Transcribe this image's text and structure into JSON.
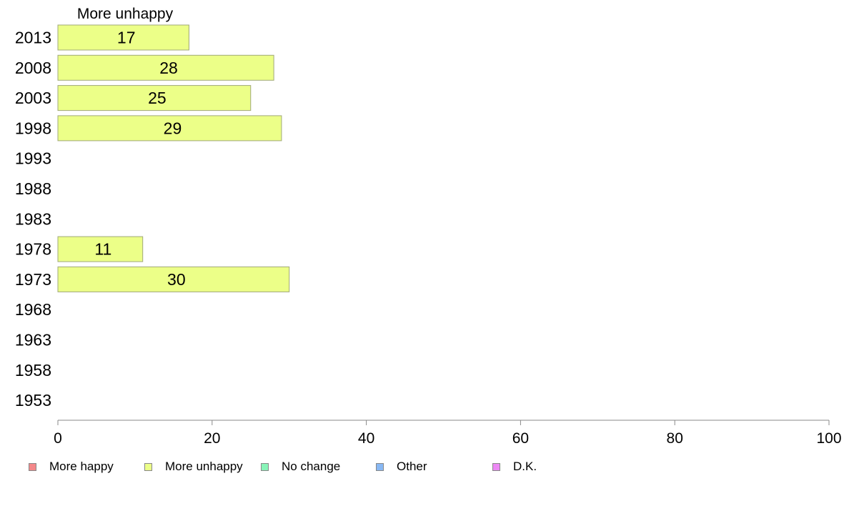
{
  "chart_data": {
    "type": "bar",
    "orientation": "horizontal",
    "title": "More unhappy",
    "categories": [
      "2013",
      "2008",
      "2003",
      "1998",
      "1993",
      "1988",
      "1983",
      "1978",
      "1973",
      "1968",
      "1963",
      "1958",
      "1953"
    ],
    "series": [
      {
        "name": "More unhappy",
        "values": [
          17,
          28,
          25,
          29,
          null,
          null,
          null,
          11,
          30,
          null,
          null,
          null,
          null
        ]
      }
    ],
    "data_labels": [
      "17",
      "28",
      "25",
      "29",
      "",
      "",
      "",
      "11",
      "30",
      "",
      "",
      "",
      ""
    ],
    "xlim": [
      0,
      100
    ],
    "x_ticks": [
      "0",
      "20",
      "40",
      "60",
      "80",
      "100"
    ],
    "grid": false,
    "legend_position": "bottom"
  },
  "legend": [
    {
      "label": "More happy",
      "color": "#f4888a"
    },
    {
      "label": "More unhappy",
      "color": "#ecff88"
    },
    {
      "label": "No change",
      "color": "#88f4b8"
    },
    {
      "label": "Other",
      "color": "#88b8f4"
    },
    {
      "label": "D.K.",
      "color": "#ec88f4"
    }
  ],
  "colors": {
    "bar_fill": "#ecff88",
    "bar_stroke": "#a0a878",
    "axis": "#888888"
  }
}
